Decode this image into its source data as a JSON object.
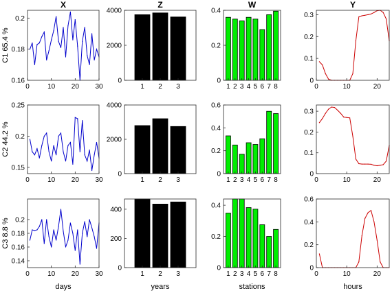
{
  "column_titles": [
    "X",
    "Z",
    "W",
    "Y"
  ],
  "row_labels": [
    "C1 65.4 %",
    "C2 44.2 %",
    "C3 8.8 %"
  ],
  "xlabels": [
    "days",
    "years",
    "stations",
    "hours"
  ],
  "colors": {
    "line_x": "#0000cc",
    "bar_z": "#000000",
    "bar_w": "#00ee00",
    "line_y": "#cc0000"
  },
  "chart_data": [
    {
      "type": "line",
      "title": "X",
      "ylabel": "C1 65.4 %",
      "xlim": [
        0,
        30
      ],
      "ylim": [
        0.16,
        0.205
      ],
      "xticks": [
        0,
        10,
        20,
        30
      ],
      "yticks": [
        0.16,
        0.18,
        0.2
      ],
      "x": [
        1,
        2,
        3,
        4,
        5,
        6,
        7,
        8,
        9,
        10,
        11,
        12,
        13,
        14,
        15,
        16,
        17,
        18,
        19,
        20,
        21,
        22,
        23,
        24,
        25,
        26,
        27,
        28,
        29,
        30
      ],
      "y": [
        0.18,
        0.184,
        0.17,
        0.183,
        0.184,
        0.188,
        0.191,
        0.173,
        0.179,
        0.186,
        0.192,
        0.201,
        0.185,
        0.181,
        0.194,
        0.175,
        0.195,
        0.204,
        0.186,
        0.199,
        0.182,
        0.16,
        0.185,
        0.194,
        0.176,
        0.17,
        0.19,
        0.173,
        0.18,
        0.175
      ]
    },
    {
      "type": "bar",
      "title": "Z",
      "xlim": [
        0,
        4
      ],
      "ylim": [
        0,
        4000
      ],
      "xticks": [
        1,
        2,
        3
      ],
      "yticks": [
        0,
        2000,
        4000
      ],
      "categories": [
        "1",
        "2",
        "3"
      ],
      "values": [
        3750,
        3850,
        3620
      ]
    },
    {
      "type": "bar",
      "title": "W",
      "xlim": [
        0.3,
        8.7
      ],
      "ylim": [
        0,
        0.4
      ],
      "xticks": [
        1,
        2,
        3,
        4,
        5,
        6,
        7,
        8
      ],
      "yticks": [
        0,
        0.2,
        0.4
      ],
      "categories": [
        "1",
        "2",
        "3",
        "4",
        "5",
        "6",
        "7",
        "8"
      ],
      "values": [
        0.36,
        0.35,
        0.34,
        0.36,
        0.35,
        0.29,
        0.375,
        0.395
      ]
    },
    {
      "type": "line",
      "title": "Y",
      "xlim": [
        0,
        24
      ],
      "ylim": [
        0,
        0.32
      ],
      "xticks": [
        0,
        10,
        20
      ],
      "yticks": [
        0,
        0.1,
        0.2,
        0.3
      ],
      "x": [
        1,
        2,
        3,
        4,
        5,
        6,
        7,
        8,
        9,
        10,
        11,
        12,
        13,
        14,
        15,
        16,
        17,
        18,
        19,
        20,
        21,
        22,
        23,
        24
      ],
      "y": [
        0.085,
        0.07,
        0.03,
        0.005,
        0,
        0,
        0,
        0,
        0,
        0,
        0,
        0.03,
        0.18,
        0.29,
        0.295,
        0.297,
        0.3,
        0.303,
        0.31,
        0.318,
        0.32,
        0.31,
        0.28,
        0.18
      ]
    },
    {
      "type": "line",
      "ylabel": "C2 44.2 %",
      "xlim": [
        0,
        30
      ],
      "ylim": [
        0.14,
        0.25
      ],
      "xticks": [
        0,
        10,
        20,
        30
      ],
      "yticks": [
        0.15,
        0.2,
        0.25
      ],
      "x": [
        1,
        2,
        3,
        4,
        5,
        6,
        7,
        8,
        9,
        10,
        11,
        12,
        13,
        14,
        15,
        16,
        17,
        18,
        19,
        20,
        21,
        22,
        23,
        24,
        25,
        26,
        27,
        28,
        29,
        30
      ],
      "y": [
        0.195,
        0.175,
        0.17,
        0.18,
        0.165,
        0.185,
        0.2,
        0.205,
        0.175,
        0.16,
        0.185,
        0.17,
        0.2,
        0.205,
        0.175,
        0.16,
        0.185,
        0.19,
        0.155,
        0.23,
        0.228,
        0.175,
        0.225,
        0.17,
        0.16,
        0.178,
        0.145,
        0.17,
        0.19,
        0.165
      ]
    },
    {
      "type": "bar",
      "xlim": [
        0,
        4
      ],
      "ylim": [
        0,
        4000
      ],
      "xticks": [
        1,
        2,
        3
      ],
      "yticks": [
        0,
        2000,
        4000
      ],
      "categories": [
        "1",
        "2",
        "3"
      ],
      "values": [
        2800,
        3200,
        2750
      ]
    },
    {
      "type": "bar",
      "xlim": [
        0.3,
        8.7
      ],
      "ylim": [
        0,
        0.6
      ],
      "xticks": [
        1,
        2,
        3,
        4,
        5,
        6,
        7,
        8
      ],
      "yticks": [
        0,
        0.2,
        0.4,
        0.6
      ],
      "categories": [
        "1",
        "2",
        "3",
        "4",
        "5",
        "6",
        "7",
        "8"
      ],
      "values": [
        0.33,
        0.25,
        0.17,
        0.27,
        0.255,
        0.305,
        0.545,
        0.525
      ]
    },
    {
      "type": "line",
      "xlim": [
        0,
        24
      ],
      "ylim": [
        0,
        0.33
      ],
      "xticks": [
        0,
        10,
        20
      ],
      "yticks": [
        0,
        0.1,
        0.2,
        0.3
      ],
      "x": [
        1,
        2,
        3,
        4,
        5,
        6,
        7,
        8,
        9,
        10,
        11,
        12,
        13,
        14,
        15,
        16,
        17,
        18,
        19,
        20,
        21,
        22,
        23,
        24
      ],
      "y": [
        0.245,
        0.265,
        0.29,
        0.31,
        0.32,
        0.318,
        0.305,
        0.29,
        0.272,
        0.27,
        0.268,
        0.18,
        0.07,
        0.048,
        0.046,
        0.046,
        0.046,
        0.045,
        0.04,
        0.038,
        0.04,
        0.043,
        0.06,
        0.135
      ]
    },
    {
      "type": "line",
      "ylabel": "C3 8.8 %",
      "xlim": [
        0,
        30
      ],
      "ylim": [
        0.13,
        0.23
      ],
      "xticks": [
        0,
        10,
        20,
        30
      ],
      "yticks": [
        0.14,
        0.16,
        0.18,
        0.2
      ],
      "x": [
        1,
        2,
        3,
        4,
        5,
        6,
        7,
        8,
        9,
        10,
        11,
        12,
        13,
        14,
        15,
        16,
        17,
        18,
        19,
        20,
        21,
        22,
        23,
        24,
        25,
        26,
        27,
        28,
        29,
        30
      ],
      "y": [
        0.17,
        0.185,
        0.184,
        0.185,
        0.19,
        0.2,
        0.165,
        0.2,
        0.175,
        0.16,
        0.185,
        0.17,
        0.19,
        0.215,
        0.183,
        0.16,
        0.17,
        0.195,
        0.18,
        0.155,
        0.185,
        0.135,
        0.18,
        0.197,
        0.175,
        0.2,
        0.188,
        0.175,
        0.158,
        0.195
      ]
    },
    {
      "type": "bar",
      "xlim": [
        0,
        4
      ],
      "ylim": [
        0,
        470
      ],
      "xticks": [
        1,
        2,
        3
      ],
      "yticks": [
        0,
        200,
        400
      ],
      "categories": [
        "1",
        "2",
        "3"
      ],
      "values": [
        470,
        435,
        450
      ]
    },
    {
      "type": "bar",
      "xlim": [
        0.3,
        8.7
      ],
      "ylim": [
        0,
        0.44
      ],
      "xticks": [
        1,
        2,
        3,
        4,
        5,
        6,
        7,
        8
      ],
      "yticks": [
        0,
        0.2,
        0.4
      ],
      "categories": [
        "1",
        "2",
        "3",
        "4",
        "5",
        "6",
        "7",
        "8"
      ],
      "values": [
        0.35,
        0.44,
        0.44,
        0.385,
        0.375,
        0.275,
        0.2,
        0.245
      ]
    },
    {
      "type": "line",
      "xlim": [
        0,
        24
      ],
      "ylim": [
        0,
        0.6
      ],
      "xticks": [
        0,
        10,
        20
      ],
      "yticks": [
        0,
        0.2,
        0.4,
        0.6
      ],
      "x": [
        1,
        2,
        3,
        4,
        5,
        6,
        7,
        8,
        9,
        10,
        11,
        12,
        13,
        14,
        15,
        16,
        17,
        18,
        19,
        20,
        21,
        22,
        23,
        24
      ],
      "y": [
        0.12,
        0,
        0,
        0,
        0,
        0,
        0,
        0,
        0,
        0,
        0,
        0,
        0,
        0.05,
        0.28,
        0.43,
        0.48,
        0.5,
        0.4,
        0.24,
        0.05,
        0,
        0,
        0
      ]
    }
  ]
}
